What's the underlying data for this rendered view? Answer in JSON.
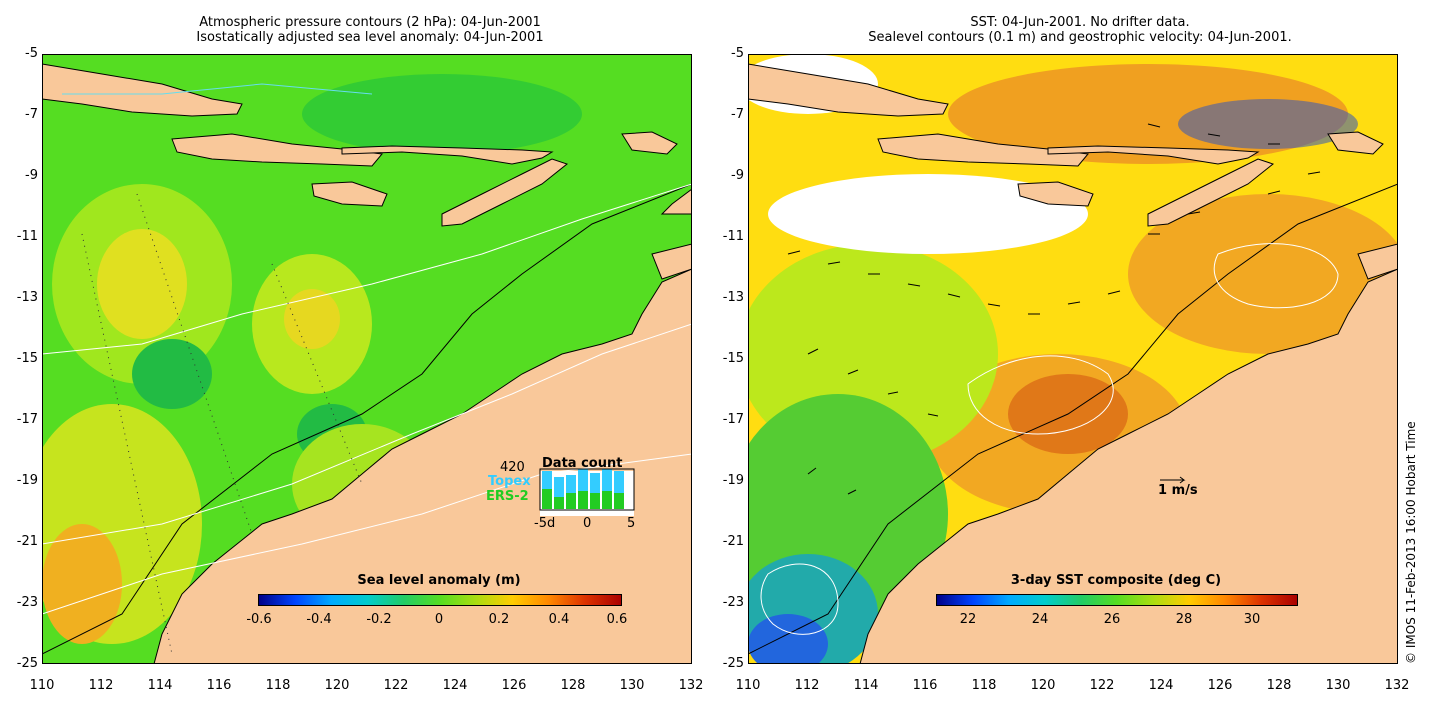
{
  "left": {
    "title_line1": "Atmospheric pressure contours (2 hPa): 04-Jun-2001",
    "title_line2": "Isostatically adjusted sea level anomaly: 04-Jun-2001",
    "colorbar_title": "Sea level anomaly (m)",
    "colorbar_ticks": [
      "-0.6",
      "-0.4",
      "-0.2",
      "0",
      "0.2",
      "0.4",
      "0.6"
    ],
    "inset": {
      "title": "Data count",
      "max_count": "420",
      "series1": "Topex",
      "series2": "ERS-2",
      "axis_labels": [
        "-5d",
        "0",
        "5"
      ],
      "colors": {
        "topex": "#33ccff",
        "ers2": "#22cc22"
      }
    }
  },
  "right": {
    "title_line1": "SST: 04-Jun-2001. No drifter data.",
    "title_line2": "Sealevel contours (0.1 m) and geostrophic velocity: 04-Jun-2001.",
    "colorbar_title": "3-day SST composite (deg C)",
    "colorbar_ticks": [
      "22",
      "24",
      "26",
      "28",
      "30"
    ],
    "vector_scale_label": "1 m/s"
  },
  "axes": {
    "lat_labels": [
      "-5",
      "-7",
      "-9",
      "-11",
      "-13",
      "-15",
      "-17",
      "-19",
      "-21",
      "-23",
      "-25"
    ],
    "lon_labels": [
      "110",
      "112",
      "114",
      "116",
      "118",
      "120",
      "122",
      "124",
      "126",
      "128",
      "130",
      "132"
    ]
  },
  "copyright": "© IMOS 11-Feb-2013 16:00 Hobart Time",
  "colors": {
    "land": "#f9c89a",
    "ocean_green": "#55dd22",
    "coast": "#000000"
  }
}
